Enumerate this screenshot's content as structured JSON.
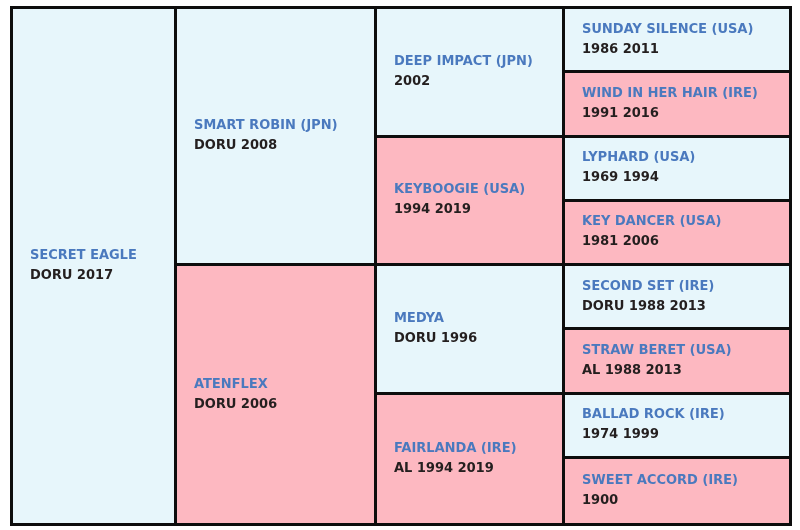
{
  "theme": {
    "page_bg": "#ffffff",
    "blue_bg": "#e7f6fb",
    "pink_bg": "#fdb8c1",
    "border": "#0d0d0d",
    "name_color": "#4a79be",
    "info_color": "#241f1f"
  },
  "pedigree": {
    "cells": [
      {
        "id": "secret-eagle",
        "name": "SECRET EAGLE",
        "info": "DORU 2017",
        "tone": "blue"
      },
      {
        "id": "smart-robin",
        "name": "SMART ROBIN (JPN)",
        "info": "DORU 2008",
        "tone": "blue"
      },
      {
        "id": "atenflex",
        "name": "ATENFLEX",
        "info": "DORU 2006",
        "tone": "pink"
      },
      {
        "id": "deep-impact",
        "name": "DEEP IMPACT (JPN)",
        "info": "2002",
        "tone": "blue"
      },
      {
        "id": "keyboogie",
        "name": "KEYBOOGIE (USA)",
        "info": "1994 2019",
        "tone": "pink"
      },
      {
        "id": "medya",
        "name": "MEDYA",
        "info": "DORU 1996",
        "tone": "blue"
      },
      {
        "id": "fairlanda",
        "name": "FAIRLANDA (IRE)",
        "info": "AL 1994 2019",
        "tone": "pink"
      },
      {
        "id": "sunday-silence",
        "name": "SUNDAY SILENCE (USA)",
        "info": "1986 2011",
        "tone": "blue"
      },
      {
        "id": "wind-in-her-hair",
        "name": "WIND IN HER HAIR (IRE)",
        "info": "1991 2016",
        "tone": "pink"
      },
      {
        "id": "lyphard",
        "name": "LYPHARD (USA)",
        "info": "1969 1994",
        "tone": "blue"
      },
      {
        "id": "key-dancer",
        "name": "KEY DANCER (USA)",
        "info": "1981 2006",
        "tone": "pink"
      },
      {
        "id": "second-set",
        "name": "SECOND SET (IRE)",
        "info": "DORU 1988 2013",
        "tone": "blue"
      },
      {
        "id": "straw-beret",
        "name": "STRAW BERET (USA)",
        "info": "AL 1988 2013",
        "tone": "pink"
      },
      {
        "id": "ballad-rock",
        "name": "BALLAD ROCK (IRE)",
        "info": "1974 1999",
        "tone": "blue"
      },
      {
        "id": "sweet-accord",
        "name": "SWEET ACCORD (IRE)",
        "info": "1900",
        "tone": "pink"
      }
    ]
  }
}
